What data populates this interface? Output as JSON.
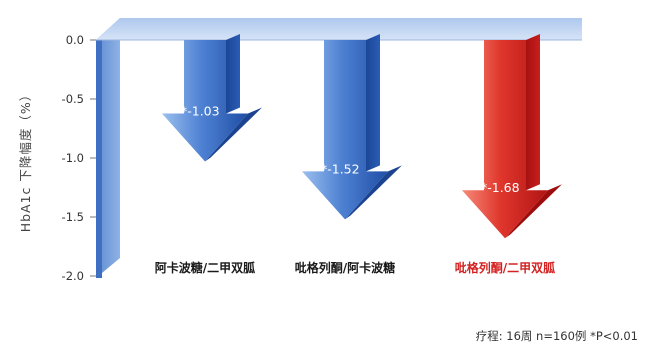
{
  "chart_data": {
    "type": "bar",
    "ylabel": "HbA1c 下降幅度（%）",
    "ylim": [
      -2.0,
      0.0
    ],
    "yticks": [
      "0.0",
      "-0.5",
      "-1.0",
      "-1.5",
      "-2.0"
    ],
    "categories": [
      "阿卡波糖/二甲双胍",
      "吡格列酮/阿卡波糖",
      "吡格列酮/二甲双胍"
    ],
    "values": [
      -1.03,
      -1.52,
      -1.68
    ],
    "value_labels": [
      "*-1.03",
      "*-1.52",
      "*-1.68"
    ],
    "colors": [
      "#2f5fb3",
      "#2f5fb3",
      "#d42222"
    ],
    "label_colors": [
      "#1a1a1a",
      "#1a1a1a",
      "#d42222"
    ]
  },
  "footnote": "疗程: 16周   n=160例   *P<0.01"
}
